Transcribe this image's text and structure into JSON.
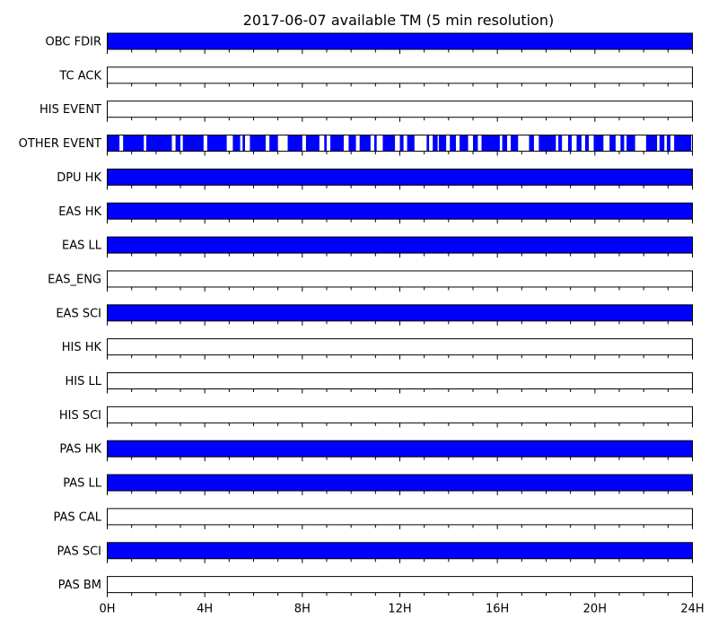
{
  "chart_data": {
    "type": "timeline",
    "title": "2017-06-07 available TM (5 min resolution)",
    "x_range_hours": [
      0,
      24
    ],
    "x_ticks": [
      {
        "hour": 0,
        "label": "0H"
      },
      {
        "hour": 4,
        "label": "4H"
      },
      {
        "hour": 8,
        "label": "8H"
      },
      {
        "hour": 12,
        "label": "12H"
      },
      {
        "hour": 16,
        "label": "16H"
      },
      {
        "hour": 20,
        "label": "20H"
      },
      {
        "hour": 24,
        "label": "24H"
      }
    ],
    "minor_tick_step_hours": 1,
    "available_color": "#0000ff",
    "rows": [
      {
        "name": "OBC FDIR",
        "segments": [
          [
            0,
            24
          ]
        ]
      },
      {
        "name": "TC ACK",
        "segments": []
      },
      {
        "name": "HIS EVENT",
        "segments": []
      },
      {
        "name": "OTHER EVENT",
        "segments": [
          [
            0.0,
            0.5
          ],
          [
            0.65,
            1.5
          ],
          [
            1.6,
            2.65
          ],
          [
            2.8,
            3.0
          ],
          [
            3.1,
            3.95
          ],
          [
            4.1,
            4.9
          ],
          [
            5.15,
            5.45
          ],
          [
            5.55,
            5.65
          ],
          [
            5.85,
            6.5
          ],
          [
            6.65,
            7.0
          ],
          [
            7.4,
            8.0
          ],
          [
            8.15,
            8.7
          ],
          [
            8.9,
            9.0
          ],
          [
            9.15,
            9.7
          ],
          [
            9.9,
            10.2
          ],
          [
            10.35,
            10.8
          ],
          [
            10.95,
            11.05
          ],
          [
            11.3,
            11.8
          ],
          [
            12.0,
            12.15
          ],
          [
            12.3,
            12.6
          ],
          [
            13.1,
            13.2
          ],
          [
            13.35,
            13.55
          ],
          [
            13.6,
            13.9
          ],
          [
            14.05,
            14.3
          ],
          [
            14.45,
            14.8
          ],
          [
            15.0,
            15.2
          ],
          [
            15.35,
            16.1
          ],
          [
            16.2,
            16.4
          ],
          [
            16.55,
            16.85
          ],
          [
            17.3,
            17.5
          ],
          [
            17.7,
            18.4
          ],
          [
            18.5,
            18.65
          ],
          [
            18.9,
            19.05
          ],
          [
            19.25,
            19.45
          ],
          [
            19.6,
            19.75
          ],
          [
            19.95,
            20.35
          ],
          [
            20.6,
            20.85
          ],
          [
            21.05,
            21.2
          ],
          [
            21.3,
            21.65
          ],
          [
            22.1,
            22.55
          ],
          [
            22.65,
            22.85
          ],
          [
            22.95,
            23.1
          ],
          [
            23.25,
            23.95
          ]
        ]
      },
      {
        "name": "DPU HK",
        "segments": [
          [
            0,
            24
          ]
        ]
      },
      {
        "name": "EAS HK",
        "segments": [
          [
            0,
            24
          ]
        ]
      },
      {
        "name": "EAS LL",
        "segments": [
          [
            0,
            24
          ]
        ]
      },
      {
        "name": "EAS_ENG",
        "segments": []
      },
      {
        "name": "EAS SCI",
        "segments": [
          [
            0,
            24
          ]
        ]
      },
      {
        "name": "HIS HK",
        "segments": []
      },
      {
        "name": "HIS LL",
        "segments": []
      },
      {
        "name": "HIS SCI",
        "segments": []
      },
      {
        "name": "PAS HK",
        "segments": [
          [
            0,
            24
          ]
        ]
      },
      {
        "name": "PAS LL",
        "segments": [
          [
            0,
            24
          ]
        ]
      },
      {
        "name": "PAS CAL",
        "segments": []
      },
      {
        "name": "PAS SCI",
        "segments": [
          [
            0,
            24
          ]
        ]
      },
      {
        "name": "PAS BM",
        "segments": []
      }
    ]
  }
}
